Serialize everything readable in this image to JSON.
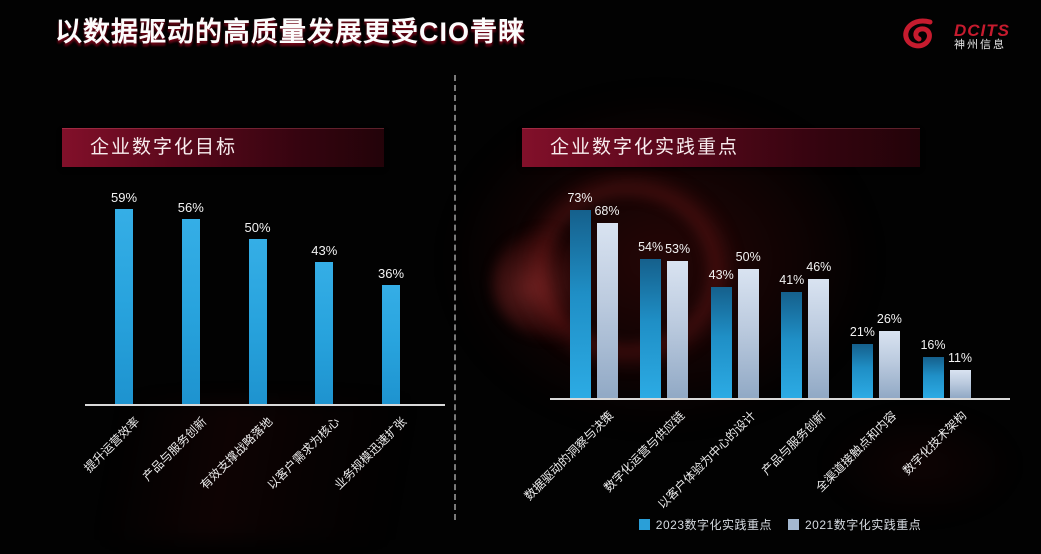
{
  "title": "以数据驱动的高质量发展更受CIO青睐",
  "logo": {
    "brand": "DCITS",
    "company": "神州信息",
    "color": "#c61b2e"
  },
  "colors": {
    "series_2023": "#2aa3dc",
    "series_2021": "#a9bdd4",
    "banner": "#6b0a20",
    "background": "#020202",
    "axis": "#d9d9d9"
  },
  "legend": [
    {
      "label": "2023数字化实践重点",
      "color": "#2a9fd8"
    },
    {
      "label": "2021数字化实践重点",
      "color": "#a4b8d0"
    }
  ],
  "chart_data": [
    {
      "type": "bar",
      "title": "企业数字化目标",
      "categories": [
        "提升运营效率",
        "产品与服务创新",
        "有效支撑战略落地",
        "以客户需求为核心",
        "业务规模迅速扩张"
      ],
      "values": [
        59,
        56,
        50,
        43,
        36
      ],
      "unit": "%",
      "xlabel": "",
      "ylabel": "",
      "ylim": [
        0,
        65
      ],
      "grid": false,
      "value_labels": true,
      "category_label_rotation": -45
    },
    {
      "type": "bar",
      "title": "企业数字化实践重点",
      "categories": [
        "数据驱动的洞察与决策",
        "数字化运营与供应链",
        "以客户体验为中心的设计",
        "产品与服务创新",
        "全渠道接触点和内容",
        "数字化技术架构"
      ],
      "series": [
        {
          "name": "2023数字化实践重点",
          "values": [
            73,
            54,
            43,
            41,
            21,
            16
          ]
        },
        {
          "name": "2021数字化实践重点",
          "values": [
            68,
            53,
            50,
            46,
            26,
            11
          ]
        }
      ],
      "unit": "%",
      "xlabel": "",
      "ylabel": "",
      "ylim": [
        0,
        80
      ],
      "grid": false,
      "value_labels": true,
      "category_label_rotation": -45,
      "legend_position": "bottom"
    }
  ]
}
